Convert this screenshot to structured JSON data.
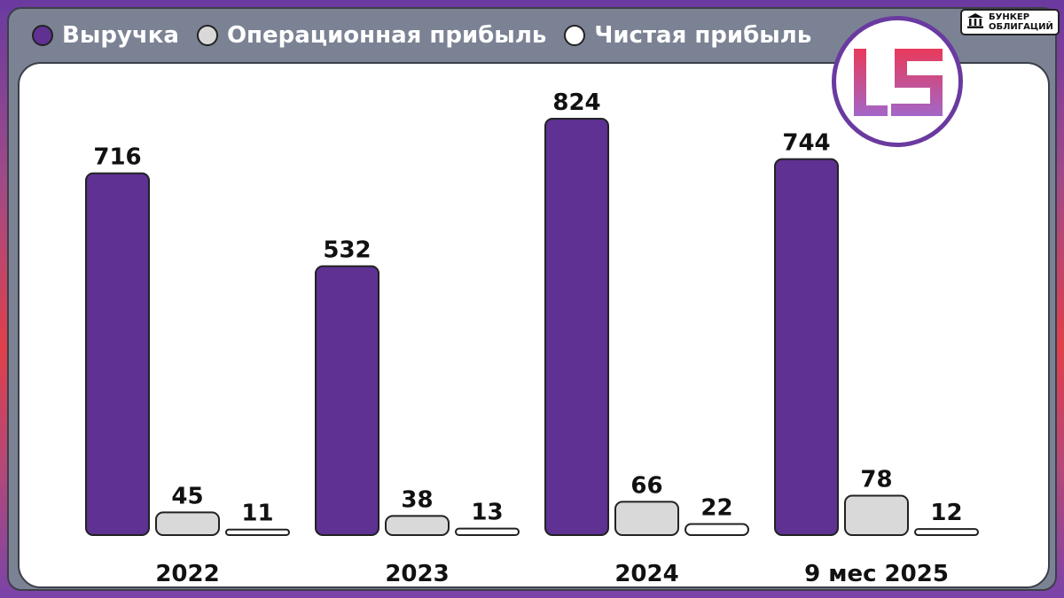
{
  "brand": {
    "label": "БУНКЕР\nОБЛИГАЦИЙ",
    "icon": "bank-building-icon"
  },
  "logo": {
    "icon": "company-logo-ls-icon"
  },
  "colors": {
    "revenue": "#5e3193",
    "operating": "#d9d9d9",
    "net": "#ffffff",
    "stroke": "#222222"
  },
  "chart_data": {
    "type": "bar",
    "title": "",
    "xlabel": "",
    "ylabel": "",
    "grid": false,
    "legend_position": "top-left",
    "ylim": [
      0,
      824
    ],
    "categories": [
      "2022",
      "2023",
      "2024",
      "9 мес 2025"
    ],
    "series": [
      {
        "name": "Выручка",
        "values": [
          716,
          532,
          824,
          744
        ]
      },
      {
        "name": "Операционная прибыль",
        "values": [
          45,
          38,
          66,
          78
        ]
      },
      {
        "name": "Чистая прибыль",
        "values": [
          11,
          13,
          22,
          12
        ]
      }
    ]
  }
}
